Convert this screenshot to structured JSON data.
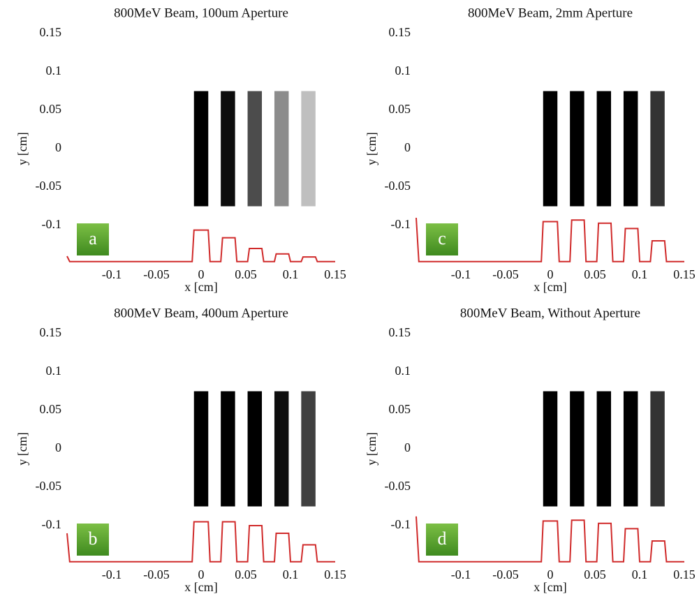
{
  "chart_data": [
    {
      "type": "line",
      "panel_label": "a",
      "title": "800MeV Beam, 100um Aperture",
      "xlabel": "x [cm]",
      "ylabel": "y [cm]",
      "xlim": [
        -0.15,
        0.15
      ],
      "ylim": [
        -0.15,
        0.15
      ],
      "xticks": [
        -0.1,
        -0.05,
        0,
        0.05,
        0.1,
        0.15
      ],
      "yticks": [
        -0.1,
        -0.05,
        0,
        0.05,
        0.1,
        0.15
      ],
      "stripes": {
        "x": [
          0,
          0.03,
          0.06,
          0.09,
          0.12
        ],
        "intensity": [
          1,
          0.95,
          0.7,
          0.45,
          0.25
        ]
      },
      "stripe_width": 0.016,
      "stripe_ylim": [
        -0.075,
        0.075
      ],
      "series": [
        {
          "color": "#d02a2a",
          "x": [
            -0.15,
            -0.147,
            -0.01,
            -0.008,
            0.008,
            0.01,
            0.022,
            0.024,
            0.038,
            0.04,
            0.052,
            0.054,
            0.068,
            0.07,
            0.082,
            0.084,
            0.098,
            0.1,
            0.112,
            0.114,
            0.128,
            0.13,
            0.15
          ],
          "values": [
            -0.14,
            -0.147,
            -0.147,
            -0.106,
            -0.106,
            -0.147,
            -0.147,
            -0.116,
            -0.116,
            -0.147,
            -0.147,
            -0.13,
            -0.13,
            -0.147,
            -0.147,
            -0.137,
            -0.137,
            -0.147,
            -0.147,
            -0.141,
            -0.141,
            -0.147,
            -0.147
          ]
        }
      ]
    },
    {
      "type": "line",
      "panel_label": "c",
      "title": "800MeV Beam, 2mm Aperture",
      "xlabel": "x [cm]",
      "ylabel": "y [cm]",
      "xlim": [
        -0.15,
        0.15
      ],
      "ylim": [
        -0.15,
        0.15
      ],
      "xticks": [
        -0.1,
        -0.05,
        0,
        0.05,
        0.1,
        0.15
      ],
      "yticks": [
        -0.1,
        -0.05,
        0,
        0.05,
        0.1,
        0.15
      ],
      "stripes": {
        "x": [
          0,
          0.03,
          0.06,
          0.09,
          0.12
        ],
        "intensity": [
          1,
          1,
          1,
          1,
          0.8
        ]
      },
      "stripe_width": 0.016,
      "stripe_ylim": [
        -0.075,
        0.075
      ],
      "series": [
        {
          "color": "#d02a2a",
          "x": [
            -0.15,
            -0.147,
            -0.01,
            -0.008,
            0.008,
            0.01,
            0.022,
            0.024,
            0.038,
            0.04,
            0.052,
            0.054,
            0.068,
            0.07,
            0.082,
            0.084,
            0.098,
            0.1,
            0.112,
            0.114,
            0.128,
            0.13,
            0.15
          ],
          "values": [
            -0.09,
            -0.147,
            -0.147,
            -0.095,
            -0.095,
            -0.147,
            -0.147,
            -0.093,
            -0.093,
            -0.147,
            -0.147,
            -0.097,
            -0.097,
            -0.147,
            -0.147,
            -0.104,
            -0.104,
            -0.147,
            -0.147,
            -0.12,
            -0.12,
            -0.147,
            -0.147
          ]
        }
      ]
    },
    {
      "type": "line",
      "panel_label": "b",
      "title": "800MeV Beam, 400um Aperture",
      "xlabel": "x [cm]",
      "ylabel": "y [cm]",
      "xlim": [
        -0.15,
        0.15
      ],
      "ylim": [
        -0.15,
        0.15
      ],
      "xticks": [
        -0.1,
        -0.05,
        0,
        0.05,
        0.1,
        0.15
      ],
      "yticks": [
        -0.1,
        -0.05,
        0,
        0.05,
        0.1,
        0.15
      ],
      "stripes": {
        "x": [
          0,
          0.03,
          0.06,
          0.09,
          0.12
        ],
        "intensity": [
          1,
          1,
          1,
          0.95,
          0.75
        ]
      },
      "stripe_width": 0.016,
      "stripe_ylim": [
        -0.075,
        0.075
      ],
      "series": [
        {
          "color": "#d02a2a",
          "x": [
            -0.15,
            -0.147,
            -0.01,
            -0.008,
            0.008,
            0.01,
            0.022,
            0.024,
            0.038,
            0.04,
            0.052,
            0.054,
            0.068,
            0.07,
            0.082,
            0.084,
            0.098,
            0.1,
            0.112,
            0.114,
            0.128,
            0.13,
            0.15
          ],
          "values": [
            -0.11,
            -0.147,
            -0.147,
            -0.095,
            -0.095,
            -0.147,
            -0.147,
            -0.095,
            -0.095,
            -0.147,
            -0.147,
            -0.1,
            -0.1,
            -0.147,
            -0.147,
            -0.11,
            -0.11,
            -0.147,
            -0.147,
            -0.125,
            -0.125,
            -0.147,
            -0.147
          ]
        }
      ]
    },
    {
      "type": "line",
      "panel_label": "d",
      "title": "800MeV Beam, Without Aperture",
      "xlabel": "x [cm]",
      "ylabel": "y [cm]",
      "xlim": [
        -0.15,
        0.15
      ],
      "ylim": [
        -0.15,
        0.15
      ],
      "xticks": [
        -0.1,
        -0.05,
        0,
        0.05,
        0.1,
        0.15
      ],
      "yticks": [
        -0.1,
        -0.05,
        0,
        0.05,
        0.1,
        0.15
      ],
      "stripes": {
        "x": [
          0,
          0.03,
          0.06,
          0.09,
          0.12
        ],
        "intensity": [
          1,
          1,
          1,
          1,
          0.8
        ]
      },
      "stripe_width": 0.016,
      "stripe_ylim": [
        -0.075,
        0.075
      ],
      "series": [
        {
          "color": "#d02a2a",
          "x": [
            -0.15,
            -0.147,
            -0.01,
            -0.008,
            0.008,
            0.01,
            0.022,
            0.024,
            0.038,
            0.04,
            0.052,
            0.054,
            0.068,
            0.07,
            0.082,
            0.084,
            0.098,
            0.1,
            0.112,
            0.114,
            0.128,
            0.13,
            0.15
          ],
          "values": [
            -0.088,
            -0.147,
            -0.147,
            -0.094,
            -0.094,
            -0.147,
            -0.147,
            -0.093,
            -0.093,
            -0.147,
            -0.147,
            -0.097,
            -0.097,
            -0.147,
            -0.147,
            -0.104,
            -0.104,
            -0.147,
            -0.147,
            -0.12,
            -0.12,
            -0.147,
            -0.147
          ]
        }
      ]
    }
  ]
}
